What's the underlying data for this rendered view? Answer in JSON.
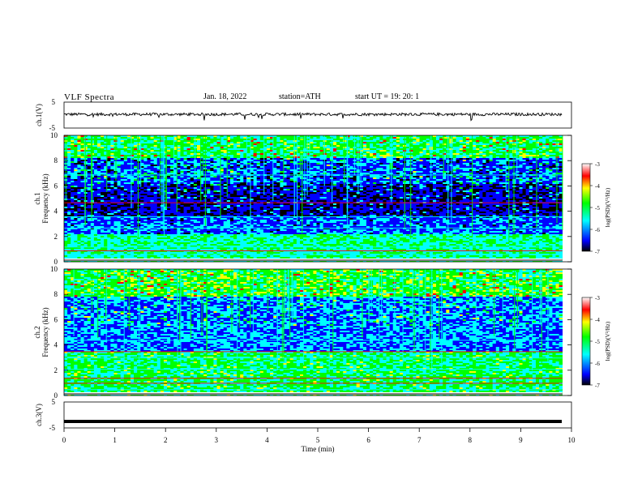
{
  "header": {
    "title": "VLF  Spectra",
    "date": "Jan. 18, 2022",
    "station": "station=ATH",
    "start": "start  UT  =    19: 20: 1"
  },
  "colormap": [
    "#000000",
    "#0000ff",
    "#00ffff",
    "#00ff00",
    "#ffff00",
    "#ff0000",
    "#ffffff"
  ],
  "chart_data": [
    {
      "type": "line",
      "name": "ch1-voltage",
      "ylabel": "ch.1(V)",
      "yticks": [
        "5",
        "-5"
      ],
      "ylim": [
        -5,
        5
      ],
      "xlim": [
        0,
        10
      ],
      "data_extent_min": 9.82,
      "approx_level": 0.3
    },
    {
      "type": "heatmap",
      "name": "ch1-spectrogram",
      "ylabel": "ch.1\nFrequency  (kHz)",
      "yticks": [
        "0",
        "2",
        "4",
        "6",
        "8",
        "10"
      ],
      "ylim": [
        0,
        10
      ],
      "xlim": [
        0,
        10
      ],
      "colorbar": {
        "label": "log(PSD)(V²/Hz)",
        "ticks": [
          "-3",
          "-4",
          "-5",
          "-6",
          "-7"
        ],
        "range": [
          -7,
          -3
        ]
      }
    },
    {
      "type": "heatmap",
      "name": "ch2-spectrogram",
      "ylabel": "ch.2\nFrequency  (kHz)",
      "yticks": [
        "0",
        "2",
        "4",
        "6",
        "8",
        "10"
      ],
      "ylim": [
        0,
        10
      ],
      "xlim": [
        0,
        10
      ],
      "colorbar": {
        "label": "log(PSD)(V²/Hz)",
        "ticks": [
          "-3",
          "-4",
          "-5",
          "-6",
          "-7"
        ],
        "range": [
          -7,
          -3
        ]
      }
    },
    {
      "type": "line",
      "name": "ch3-voltage",
      "ylabel": "ch.3(V)",
      "yticks": [
        "5",
        "-5"
      ],
      "ylim": [
        -5,
        5
      ],
      "xlim": [
        0,
        10
      ],
      "xlabel": "Time  (min)",
      "xticks": [
        "0",
        "1",
        "2",
        "3",
        "4",
        "5",
        "6",
        "7",
        "8",
        "9",
        "10"
      ],
      "approx_level": -2.5
    }
  ]
}
